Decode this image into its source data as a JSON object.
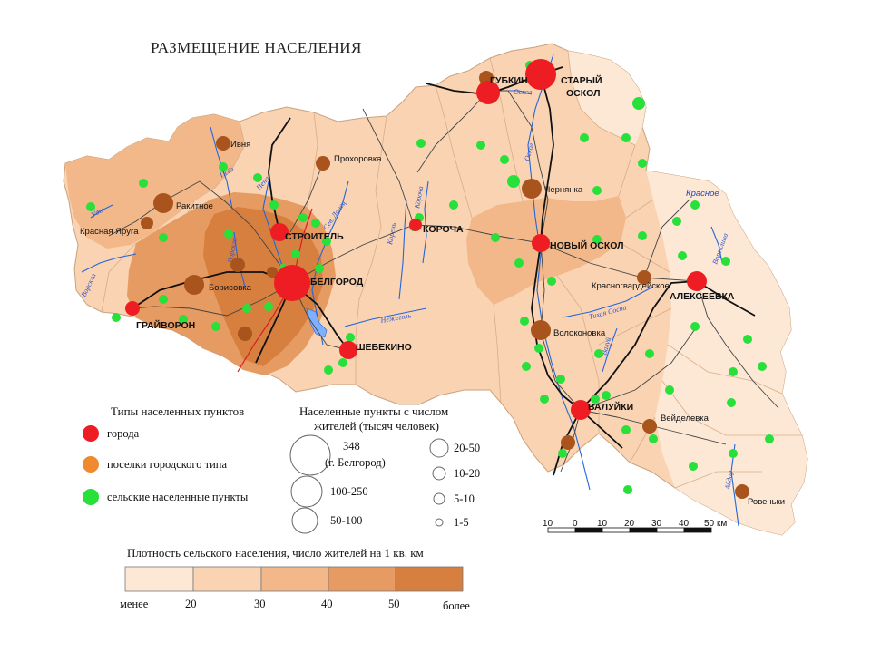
{
  "title": "РАЗМЕЩЕНИЕ НАСЕЛЕНИЯ",
  "colors": {
    "density_1": "#fde8d6",
    "density_2": "#f9d3b2",
    "density_3": "#f2b88a",
    "density_4": "#e69b62",
    "density_5": "#d67f3f",
    "city": "#ee1d23",
    "urban_settlement": "#a9541c",
    "rural": "#27e03a",
    "road": "#333333",
    "railway": "#111111",
    "river": "#2266dd"
  },
  "cities": [
    {
      "name": "ГУБКИН",
      "type": "city"
    },
    {
      "name": "СТАРЫЙ ОСКОЛ",
      "type": "city"
    },
    {
      "name": "СТРОИТЕЛЬ",
      "type": "city"
    },
    {
      "name": "КОРОЧА",
      "type": "city"
    },
    {
      "name": "НОВЫЙ ОСКОЛ",
      "type": "city"
    },
    {
      "name": "БЕЛГОРОД",
      "type": "city"
    },
    {
      "name": "АЛЕКСЕЕВКА",
      "type": "city"
    },
    {
      "name": "ГРАЙВОРОН",
      "type": "city"
    },
    {
      "name": "ШЕБЕКИНО",
      "type": "city"
    },
    {
      "name": "ВАЛУЙКИ",
      "type": "city"
    }
  ],
  "towns": [
    {
      "name": "Ивня"
    },
    {
      "name": "Прохоровка"
    },
    {
      "name": "Ракитное"
    },
    {
      "name": "Красная Яруга"
    },
    {
      "name": "Чернянка"
    },
    {
      "name": "Красное"
    },
    {
      "name": "Борисовка"
    },
    {
      "name": "Красногвардейское"
    },
    {
      "name": "Волоконовка"
    },
    {
      "name": "Вейделевка"
    },
    {
      "name": "Ровеньки"
    }
  ],
  "rivers": [
    "Оскол",
    "Оскол",
    "Псёл",
    "Пена",
    "Ворскла",
    "Ворскла",
    "Сев. Донец",
    "Корень",
    "Корочa",
    "Нежеголь",
    "Тихая Сосна",
    "Валуй",
    "Айдар",
    "Уды",
    "Ворсклица"
  ],
  "legend": {
    "types_title": "Типы населенных пунктов",
    "types": [
      {
        "label": "города",
        "color": "#ee1d23"
      },
      {
        "label": "поселки городского типа",
        "color": "#ef8a2e"
      },
      {
        "label": "сельские населенные пункты",
        "color": "#27e03a"
      }
    ],
    "sizes_title_line1": "Населенные пункты с числом",
    "sizes_title_line2": "жителей (тысяч человек)",
    "sizes_left": [
      {
        "label": "348",
        "label2": "(г. Белгород)"
      },
      {
        "label": "100-250"
      },
      {
        "label": "50-100"
      }
    ],
    "sizes_right": [
      {
        "label": "20-50"
      },
      {
        "label": "10-20"
      },
      {
        "label": "5-10"
      },
      {
        "label": "1-5"
      }
    ],
    "density_title": "Плотность  сельского  населения, число жителей на 1 кв. км",
    "density_ticks": [
      "менее",
      "20",
      "30",
      "40",
      "50",
      "более"
    ]
  },
  "scale": {
    "ticks": [
      "10",
      "0",
      "10",
      "20",
      "30",
      "40",
      "50"
    ],
    "unit": "км"
  }
}
